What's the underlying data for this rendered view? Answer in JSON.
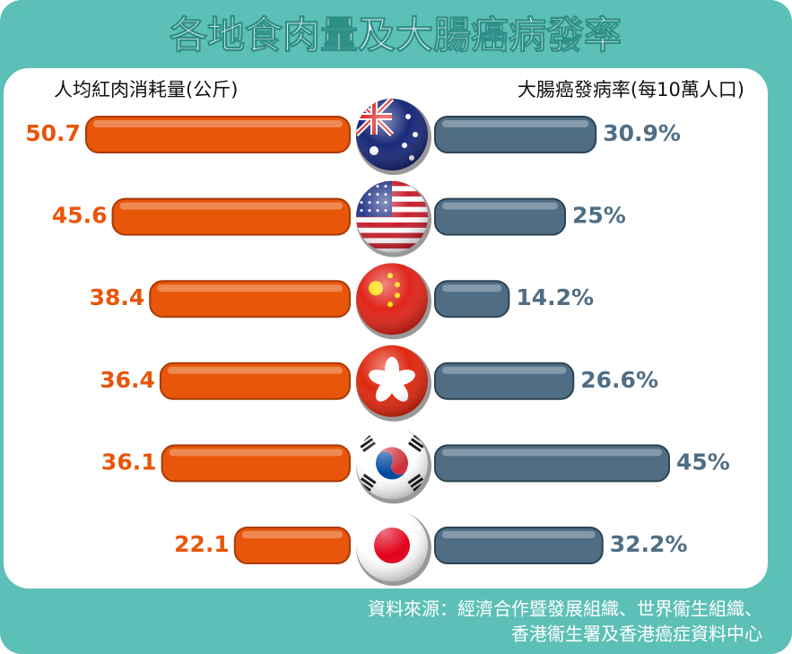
{
  "chart_data": {
    "type": "butterfly-bar",
    "title": "各地食肉量及大腸癌病發率",
    "categories": [
      null,
      null,
      null,
      null,
      null,
      null
    ],
    "series": [
      {
        "name": "人均紅肉消耗量(公斤)",
        "color": "#e8560a",
        "values": [
          50.7,
          45.6,
          38.4,
          36.4,
          36.1,
          22.1
        ]
      },
      {
        "name": "大腸癌發病率(每10萬人口)",
        "color": "#4f6e85",
        "values": [
          30.9,
          25,
          14.2,
          26.6,
          45,
          32.2
        ],
        "value_labels": [
          "30.9%",
          "25%",
          "14.2%",
          "26.6%",
          "45%",
          "32.2%"
        ]
      }
    ],
    "source": [
      "資料來源：經濟合作暨發展組織、世界衞生組織、",
      "香港衞生署及香港癌症資料中心"
    ]
  }
}
